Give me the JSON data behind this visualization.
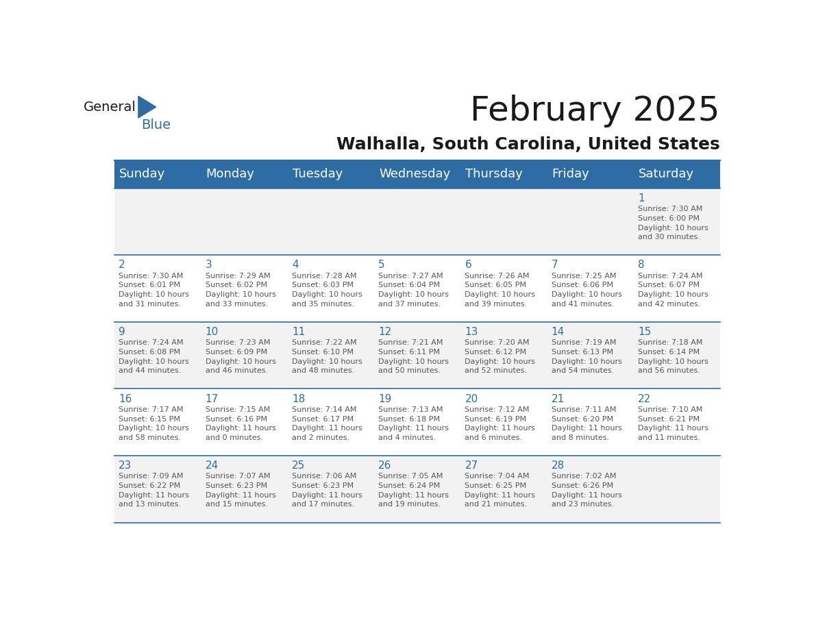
{
  "title": "February 2025",
  "subtitle": "Walhalla, South Carolina, United States",
  "header_bg": "#2E6DA4",
  "header_text_color": "#FFFFFF",
  "cell_bg_light": "#F2F2F2",
  "cell_bg_white": "#FFFFFF",
  "day_number_color": "#2E6DA4",
  "cell_text_color": "#555555",
  "grid_line_color": "#2E6DA4",
  "days_of_week": [
    "Sunday",
    "Monday",
    "Tuesday",
    "Wednesday",
    "Thursday",
    "Friday",
    "Saturday"
  ],
  "weeks": [
    [
      {
        "day": null,
        "info": null
      },
      {
        "day": null,
        "info": null
      },
      {
        "day": null,
        "info": null
      },
      {
        "day": null,
        "info": null
      },
      {
        "day": null,
        "info": null
      },
      {
        "day": null,
        "info": null
      },
      {
        "day": 1,
        "info": "Sunrise: 7:30 AM\nSunset: 6:00 PM\nDaylight: 10 hours\nand 30 minutes."
      }
    ],
    [
      {
        "day": 2,
        "info": "Sunrise: 7:30 AM\nSunset: 6:01 PM\nDaylight: 10 hours\nand 31 minutes."
      },
      {
        "day": 3,
        "info": "Sunrise: 7:29 AM\nSunset: 6:02 PM\nDaylight: 10 hours\nand 33 minutes."
      },
      {
        "day": 4,
        "info": "Sunrise: 7:28 AM\nSunset: 6:03 PM\nDaylight: 10 hours\nand 35 minutes."
      },
      {
        "day": 5,
        "info": "Sunrise: 7:27 AM\nSunset: 6:04 PM\nDaylight: 10 hours\nand 37 minutes."
      },
      {
        "day": 6,
        "info": "Sunrise: 7:26 AM\nSunset: 6:05 PM\nDaylight: 10 hours\nand 39 minutes."
      },
      {
        "day": 7,
        "info": "Sunrise: 7:25 AM\nSunset: 6:06 PM\nDaylight: 10 hours\nand 41 minutes."
      },
      {
        "day": 8,
        "info": "Sunrise: 7:24 AM\nSunset: 6:07 PM\nDaylight: 10 hours\nand 42 minutes."
      }
    ],
    [
      {
        "day": 9,
        "info": "Sunrise: 7:24 AM\nSunset: 6:08 PM\nDaylight: 10 hours\nand 44 minutes."
      },
      {
        "day": 10,
        "info": "Sunrise: 7:23 AM\nSunset: 6:09 PM\nDaylight: 10 hours\nand 46 minutes."
      },
      {
        "day": 11,
        "info": "Sunrise: 7:22 AM\nSunset: 6:10 PM\nDaylight: 10 hours\nand 48 minutes."
      },
      {
        "day": 12,
        "info": "Sunrise: 7:21 AM\nSunset: 6:11 PM\nDaylight: 10 hours\nand 50 minutes."
      },
      {
        "day": 13,
        "info": "Sunrise: 7:20 AM\nSunset: 6:12 PM\nDaylight: 10 hours\nand 52 minutes."
      },
      {
        "day": 14,
        "info": "Sunrise: 7:19 AM\nSunset: 6:13 PM\nDaylight: 10 hours\nand 54 minutes."
      },
      {
        "day": 15,
        "info": "Sunrise: 7:18 AM\nSunset: 6:14 PM\nDaylight: 10 hours\nand 56 minutes."
      }
    ],
    [
      {
        "day": 16,
        "info": "Sunrise: 7:17 AM\nSunset: 6:15 PM\nDaylight: 10 hours\nand 58 minutes."
      },
      {
        "day": 17,
        "info": "Sunrise: 7:15 AM\nSunset: 6:16 PM\nDaylight: 11 hours\nand 0 minutes."
      },
      {
        "day": 18,
        "info": "Sunrise: 7:14 AM\nSunset: 6:17 PM\nDaylight: 11 hours\nand 2 minutes."
      },
      {
        "day": 19,
        "info": "Sunrise: 7:13 AM\nSunset: 6:18 PM\nDaylight: 11 hours\nand 4 minutes."
      },
      {
        "day": 20,
        "info": "Sunrise: 7:12 AM\nSunset: 6:19 PM\nDaylight: 11 hours\nand 6 minutes."
      },
      {
        "day": 21,
        "info": "Sunrise: 7:11 AM\nSunset: 6:20 PM\nDaylight: 11 hours\nand 8 minutes."
      },
      {
        "day": 22,
        "info": "Sunrise: 7:10 AM\nSunset: 6:21 PM\nDaylight: 11 hours\nand 11 minutes."
      }
    ],
    [
      {
        "day": 23,
        "info": "Sunrise: 7:09 AM\nSunset: 6:22 PM\nDaylight: 11 hours\nand 13 minutes."
      },
      {
        "day": 24,
        "info": "Sunrise: 7:07 AM\nSunset: 6:23 PM\nDaylight: 11 hours\nand 15 minutes."
      },
      {
        "day": 25,
        "info": "Sunrise: 7:06 AM\nSunset: 6:23 PM\nDaylight: 11 hours\nand 17 minutes."
      },
      {
        "day": 26,
        "info": "Sunrise: 7:05 AM\nSunset: 6:24 PM\nDaylight: 11 hours\nand 19 minutes."
      },
      {
        "day": 27,
        "info": "Sunrise: 7:04 AM\nSunset: 6:25 PM\nDaylight: 11 hours\nand 21 minutes."
      },
      {
        "day": 28,
        "info": "Sunrise: 7:02 AM\nSunset: 6:26 PM\nDaylight: 11 hours\nand 23 minutes."
      },
      {
        "day": null,
        "info": null
      }
    ]
  ],
  "logo_triangle_color": "#2E6DA4",
  "title_fontsize": 36,
  "subtitle_fontsize": 18,
  "header_fontsize": 13,
  "day_num_fontsize": 11,
  "cell_text_fontsize": 8
}
